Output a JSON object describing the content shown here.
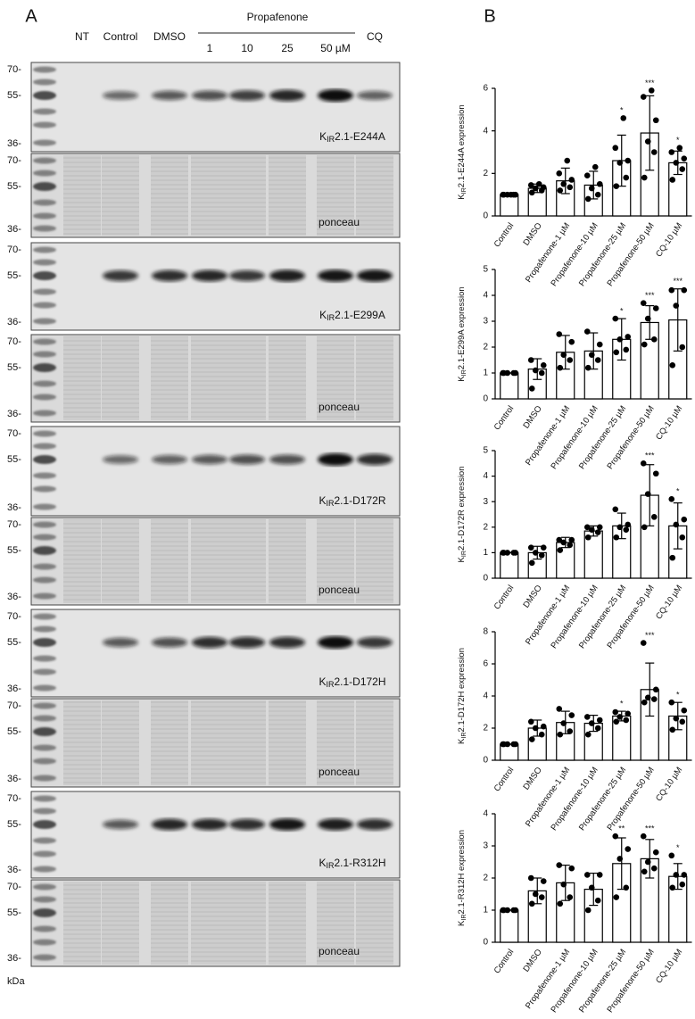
{
  "panel_labels": [
    "A",
    "B"
  ],
  "blot": {
    "header": {
      "lanes": [
        "NT",
        "Control",
        "DMSO",
        "1",
        "10",
        "25",
        "50 µM",
        "CQ"
      ],
      "group": "Propafenone"
    },
    "markers": [
      "70-",
      "55-",
      "36-"
    ],
    "unit": "kDa",
    "rows": [
      {
        "target": {
          "prefix": "K",
          "sub": "IR",
          "suffix": "2.1-E244A"
        },
        "loading": "ponceau"
      },
      {
        "target": {
          "prefix": "K",
          "sub": "IR",
          "suffix": "2.1-E299A"
        },
        "loading": "ponceau"
      },
      {
        "target": {
          "prefix": "K",
          "sub": "IR",
          "suffix": "2.1-D172R"
        },
        "loading": "ponceau"
      },
      {
        "target": {
          "prefix": "K",
          "sub": "IR",
          "suffix": "2.1-D172H"
        },
        "loading": "ponceau"
      },
      {
        "target": {
          "prefix": "K",
          "sub": "IR",
          "suffix": "2.1-R312H"
        },
        "loading": "ponceau"
      }
    ]
  },
  "chart_data": [
    {
      "type": "bar",
      "ylabel": {
        "prefix": "K",
        "sub": "IR",
        "suffix": "2.1-E244A expression"
      },
      "categories": [
        "Control",
        "DMSO",
        "Propafenone-1 µM",
        "Propafenone-10 µM",
        "Propafenone-25 µM",
        "Propafenone-50 µM",
        "CQ-10 µM"
      ],
      "values": [
        1,
        1.3,
        1.65,
        1.45,
        2.6,
        3.9,
        2.5
      ],
      "errors": [
        0,
        0.2,
        0.6,
        0.65,
        1.2,
        1.75,
        0.55
      ],
      "points": [
        [
          1,
          1,
          1,
          1,
          1,
          1
        ],
        [
          1.1,
          1.2,
          1.3,
          1.35,
          1.45,
          1.5
        ],
        [
          1.2,
          1.35,
          1.5,
          1.7,
          2.0,
          2.6
        ],
        [
          0.8,
          1.0,
          1.3,
          1.5,
          1.9,
          2.3
        ],
        [
          1.4,
          1.8,
          2.5,
          2.6,
          3.2,
          4.6
        ],
        [
          1.8,
          3.0,
          3.5,
          4.5,
          5.6,
          5.9
        ],
        [
          1.7,
          2.2,
          2.5,
          2.7,
          3.0,
          3.2
        ]
      ],
      "annotations": [
        null,
        null,
        null,
        null,
        "*",
        "***",
        "*"
      ],
      "ylim": [
        0,
        6
      ],
      "yticks": [
        0,
        2,
        4,
        6
      ],
      "color": "#ffffff"
    },
    {
      "type": "bar",
      "ylabel": {
        "prefix": "K",
        "sub": "IR",
        "suffix": "2.1-E299A expression"
      },
      "categories": [
        "Control",
        "DMSO",
        "Propafenone-1 µM",
        "Propafenone-10 µM",
        "Propafenone-25 µM",
        "Propafenone-50 µM",
        "CQ-10 µM"
      ],
      "values": [
        1,
        1.15,
        1.8,
        1.85,
        2.3,
        2.95,
        3.05
      ],
      "errors": [
        0,
        0.4,
        0.65,
        0.7,
        0.8,
        0.65,
        1.2
      ],
      "points": [
        [
          1,
          1,
          1,
          1,
          1
        ],
        [
          0.4,
          1.0,
          1.1,
          1.3,
          1.5
        ],
        [
          1.2,
          1.5,
          1.7,
          2.2,
          2.5
        ],
        [
          1.2,
          1.5,
          1.7,
          2.1,
          2.6
        ],
        [
          1.8,
          1.9,
          2.3,
          2.4,
          3.1
        ],
        [
          2.1,
          2.3,
          3.1,
          3.5,
          3.7
        ],
        [
          1.3,
          2.0,
          3.6,
          4.2,
          4.2
        ]
      ],
      "annotations": [
        null,
        null,
        null,
        null,
        "*",
        "***",
        "***"
      ],
      "ylim": [
        0,
        5
      ],
      "yticks": [
        0,
        1,
        2,
        3,
        4,
        5
      ],
      "color": "#ffffff"
    },
    {
      "type": "bar",
      "ylabel": {
        "prefix": "K",
        "sub": "IR",
        "suffix": "2.1-D172R expression"
      },
      "categories": [
        "Control",
        "DMSO",
        "Propafenone-1 µM",
        "Propafenone-10 µM",
        "Propafenone-25 µM",
        "Propafenone-50 µM",
        "CQ-10 µM"
      ],
      "values": [
        1,
        1.0,
        1.4,
        1.85,
        2.05,
        3.25,
        2.05
      ],
      "errors": [
        0,
        0.25,
        0.2,
        0.2,
        0.5,
        1.2,
        0.9
      ],
      "points": [
        [
          1,
          1,
          1,
          1,
          1
        ],
        [
          0.6,
          0.9,
          1.0,
          1.2,
          1.2
        ],
        [
          1.1,
          1.3,
          1.4,
          1.5,
          1.5
        ],
        [
          1.6,
          1.8,
          1.9,
          2.0,
          2.0
        ],
        [
          1.6,
          1.9,
          2.0,
          2.1,
          2.7
        ],
        [
          2.0,
          2.4,
          3.3,
          4.1,
          4.5
        ],
        [
          0.8,
          1.6,
          2.1,
          2.3,
          3.1
        ]
      ],
      "annotations": [
        null,
        null,
        null,
        null,
        null,
        "***",
        "*"
      ],
      "ylim": [
        0,
        5
      ],
      "yticks": [
        0,
        1,
        2,
        3,
        4,
        5
      ],
      "color": "#ffffff"
    },
    {
      "type": "bar",
      "ylabel": {
        "prefix": "K",
        "sub": "IR",
        "suffix": "2.1-D172H expression"
      },
      "categories": [
        "Control",
        "DMSO",
        "Propafenone-1 µM",
        "Propafenone-10 µM",
        "Propafenone-25 µM",
        "Propafenone-50 µM",
        "CQ-10 µM"
      ],
      "values": [
        1,
        2.0,
        2.35,
        2.3,
        2.75,
        4.4,
        2.75
      ],
      "errors": [
        0,
        0.5,
        0.7,
        0.5,
        0.3,
        1.65,
        0.85
      ],
      "points": [
        [
          1,
          1,
          1,
          1,
          1
        ],
        [
          1.3,
          1.6,
          2.0,
          2.1,
          2.4
        ],
        [
          1.6,
          1.8,
          2.3,
          2.8,
          3.2
        ],
        [
          1.6,
          2.0,
          2.3,
          2.5,
          2.7
        ],
        [
          2.4,
          2.5,
          2.7,
          2.9,
          3.0
        ],
        [
          3.6,
          3.8,
          3.9,
          4.4,
          7.3
        ],
        [
          1.9,
          2.4,
          2.6,
          3.1,
          3.6
        ]
      ],
      "annotations": [
        null,
        null,
        null,
        null,
        "*",
        "***",
        "*"
      ],
      "ylim": [
        0,
        8
      ],
      "yticks": [
        0,
        2,
        4,
        6,
        8
      ],
      "color": "#ffffff"
    },
    {
      "type": "bar",
      "ylabel": {
        "prefix": "K",
        "sub": "IR",
        "suffix": "2.1-R312H expression"
      },
      "categories": [
        "Control",
        "DMSO",
        "Propafenone-1 µM",
        "Propafenone-10 µM",
        "Propafenone-25 µM",
        "Propafenone-50 µM",
        "CQ-10 µM"
      ],
      "values": [
        1,
        1.6,
        1.85,
        1.65,
        2.45,
        2.6,
        2.05
      ],
      "errors": [
        0,
        0.4,
        0.55,
        0.5,
        0.8,
        0.6,
        0.4
      ],
      "points": [
        [
          1,
          1,
          1,
          1,
          1
        ],
        [
          1.2,
          1.4,
          1.5,
          1.9,
          2.0
        ],
        [
          1.2,
          1.4,
          1.8,
          2.3,
          2.4
        ],
        [
          1.0,
          1.3,
          1.7,
          2.1,
          2.1
        ],
        [
          1.4,
          1.7,
          2.6,
          2.9,
          3.3
        ],
        [
          2.2,
          2.3,
          2.5,
          2.8,
          3.3
        ],
        [
          1.7,
          1.8,
          2.1,
          2.1,
          2.7
        ]
      ],
      "annotations": [
        null,
        null,
        null,
        null,
        "**",
        "***",
        "*"
      ],
      "ylim": [
        0,
        4
      ],
      "yticks": [
        0,
        1,
        2,
        3,
        4
      ],
      "color": "#ffffff"
    }
  ]
}
